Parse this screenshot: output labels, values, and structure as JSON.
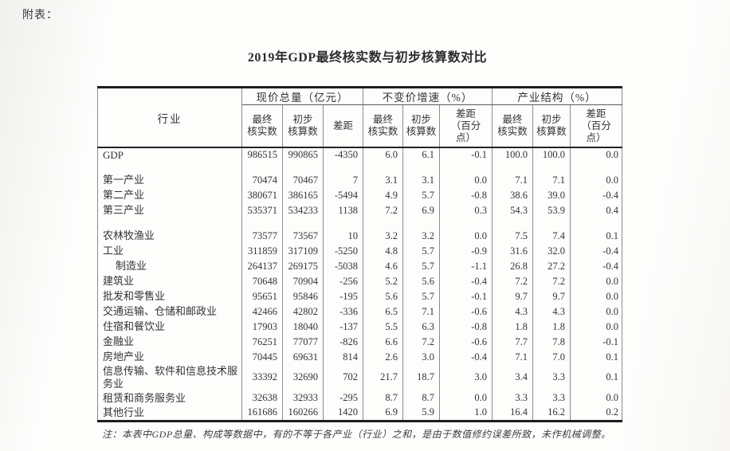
{
  "page": {
    "annotation": "附表：",
    "title": "2019年GDP最终核实数与初步核算数对比",
    "note": "注：本表中GDP总量、构成等数据中，有的不等于各产业（行业）之和，是由于数值修约误差所致，未作机械调整。"
  },
  "table": {
    "row_header": "行业",
    "groups": [
      {
        "label": "现价总量（亿元）",
        "columns": [
          "最终\n核实数",
          "初步\n核算数",
          "差距"
        ]
      },
      {
        "label": "不变价增速（%）",
        "columns": [
          "最终\n核实数",
          "初步\n核算数",
          "差距\n（百分\n点）"
        ]
      },
      {
        "label": "产业结构（%）",
        "columns": [
          "最终\n核实数",
          "初步\n核算数",
          "差距\n（百分\n点）"
        ]
      }
    ],
    "rows": [
      {
        "label": "GDP",
        "values": [
          "986515",
          "990865",
          "-4350",
          "6.0",
          "6.1",
          "-0.1",
          "100.0",
          "100.0",
          "0.0"
        ]
      },
      {
        "spacer": true
      },
      {
        "label": "第一产业",
        "values": [
          "70474",
          "70467",
          "7",
          "3.1",
          "3.1",
          "0.0",
          "7.1",
          "7.1",
          "0.0"
        ]
      },
      {
        "label": "第二产业",
        "values": [
          "380671",
          "386165",
          "-5494",
          "4.9",
          "5.7",
          "-0.8",
          "38.6",
          "39.0",
          "-0.4"
        ]
      },
      {
        "label": "第三产业",
        "values": [
          "535371",
          "534233",
          "1138",
          "7.2",
          "6.9",
          "0.3",
          "54.3",
          "53.9",
          "0.4"
        ]
      },
      {
        "spacer": true
      },
      {
        "label": "农林牧渔业",
        "values": [
          "73577",
          "73567",
          "10",
          "3.2",
          "3.2",
          "0.0",
          "7.5",
          "7.4",
          "0.1"
        ]
      },
      {
        "label": "工业",
        "values": [
          "311859",
          "317109",
          "-5250",
          "4.8",
          "5.7",
          "-0.9",
          "31.6",
          "32.0",
          "-0.4"
        ]
      },
      {
        "label": "制造业",
        "indent": true,
        "values": [
          "264137",
          "269175",
          "-5038",
          "4.6",
          "5.7",
          "-1.1",
          "26.8",
          "27.2",
          "-0.4"
        ]
      },
      {
        "label": "建筑业",
        "values": [
          "70648",
          "70904",
          "-256",
          "5.2",
          "5.6",
          "-0.4",
          "7.2",
          "7.2",
          "0.0"
        ]
      },
      {
        "label": "批发和零售业",
        "values": [
          "95651",
          "95846",
          "-195",
          "5.6",
          "5.7",
          "-0.1",
          "9.7",
          "9.7",
          "0.0"
        ]
      },
      {
        "label": "交通运输、仓储和邮政业",
        "values": [
          "42466",
          "42802",
          "-336",
          "6.5",
          "7.1",
          "-0.6",
          "4.3",
          "4.3",
          "0.0"
        ]
      },
      {
        "label": "住宿和餐饮业",
        "values": [
          "17903",
          "18040",
          "-137",
          "5.5",
          "6.3",
          "-0.8",
          "1.8",
          "1.8",
          "0.0"
        ]
      },
      {
        "label": "金融业",
        "values": [
          "76251",
          "77077",
          "-826",
          "6.6",
          "7.2",
          "-0.6",
          "7.7",
          "7.8",
          "-0.1"
        ]
      },
      {
        "label": "房地产业",
        "values": [
          "70445",
          "69631",
          "814",
          "2.6",
          "3.0",
          "-0.4",
          "7.1",
          "7.0",
          "0.1"
        ]
      },
      {
        "label": "信息传输、软件和信息技术服务业",
        "values": [
          "33392",
          "32690",
          "702",
          "21.7",
          "18.7",
          "3.0",
          "3.4",
          "3.3",
          "0.1"
        ]
      },
      {
        "label": "租赁和商务服务业",
        "values": [
          "32638",
          "32933",
          "-295",
          "8.7",
          "8.7",
          "0.0",
          "3.3",
          "3.3",
          "0.0"
        ]
      },
      {
        "label": "其他行业",
        "values": [
          "161686",
          "160266",
          "1420",
          "6.9",
          "5.9",
          "1.0",
          "16.4",
          "16.2",
          "0.2"
        ]
      }
    ]
  }
}
